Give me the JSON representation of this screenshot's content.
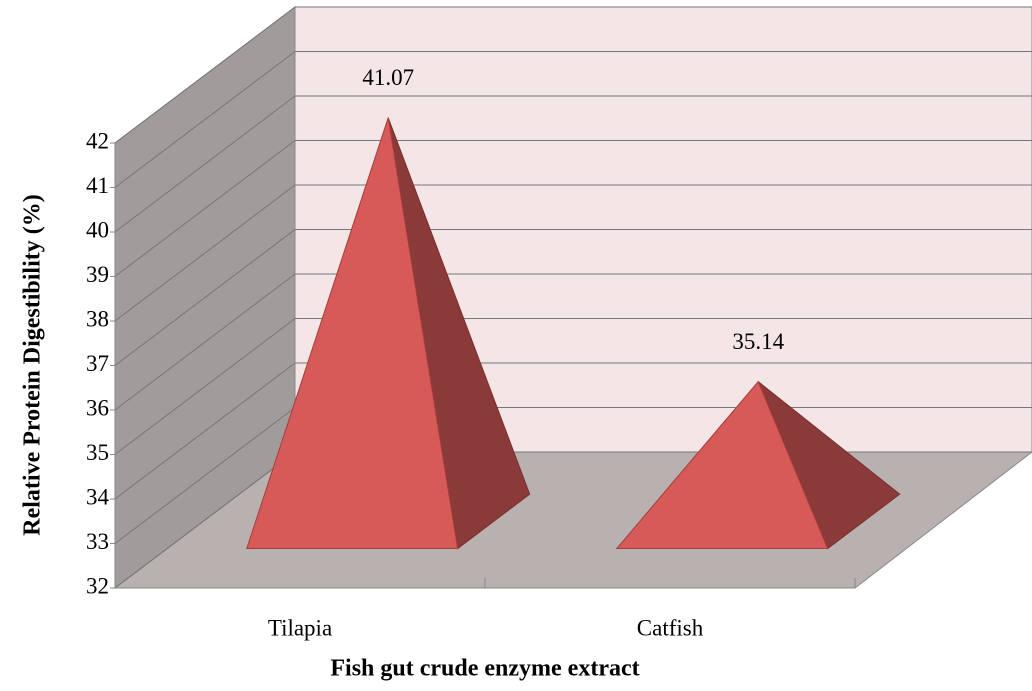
{
  "chart_data": {
    "type": "pyramid3d",
    "x_label": "Fish gut crude enzyme extract",
    "y_label": "Relative Protein Digestibility (%)",
    "categories": [
      "Tilapia",
      "Catfish"
    ],
    "values": [
      41.07,
      35.14
    ],
    "color": "#d55a58",
    "ylim": [
      32,
      42
    ],
    "yticks": [
      32,
      33,
      34,
      35,
      36,
      37,
      38,
      39,
      40,
      41,
      42
    ],
    "grid": true
  }
}
